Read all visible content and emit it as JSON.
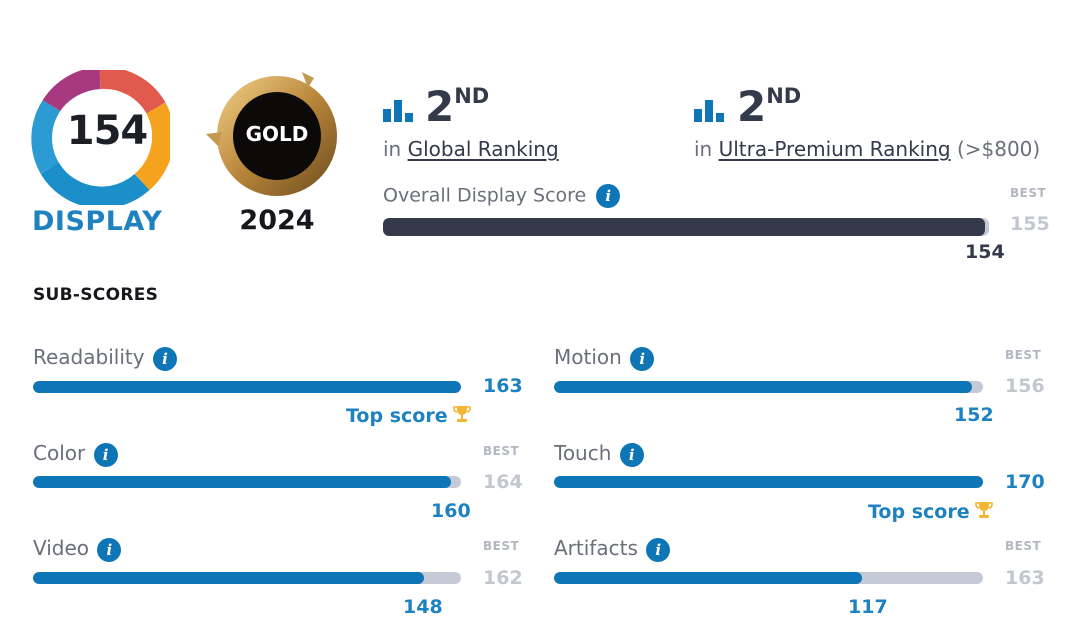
{
  "badge": {
    "score": "154",
    "word": "DISPLAY"
  },
  "gold": {
    "label": "GOLD",
    "year": "2024"
  },
  "rankings": [
    {
      "position": "2",
      "suffix": "ND",
      "prefix": "in",
      "link": "Global Ranking",
      "extra": ""
    },
    {
      "position": "2",
      "suffix": "ND",
      "prefix": "in",
      "link": "Ultra-Premium Ranking",
      "extra": "(>$800)"
    }
  ],
  "overall": {
    "label": "Overall Display Score",
    "score": 154,
    "best": 155,
    "best_label": "BEST",
    "max": 155
  },
  "subscores_title": "SUB-SCORES",
  "subscores": [
    {
      "name": "Readability",
      "score": 163,
      "best": null,
      "top": "Top score"
    },
    {
      "name": "Motion",
      "score": 152,
      "best": 156,
      "best_label": "BEST"
    },
    {
      "name": "Color",
      "score": 160,
      "best": 164,
      "best_label": "BEST"
    },
    {
      "name": "Touch",
      "score": 170,
      "best": null,
      "top": "Top score"
    },
    {
      "name": "Video",
      "score": 148,
      "best": 162,
      "best_label": "BEST"
    },
    {
      "name": "Artifacts",
      "score": 117,
      "best": 163,
      "best_label": "BEST"
    }
  ],
  "colors": {
    "accent": "#0e76b6",
    "bar_dark": "#343a4a",
    "bar_track": "#c5cad6",
    "trophy": "#f2b632"
  },
  "info_glyph": "i"
}
